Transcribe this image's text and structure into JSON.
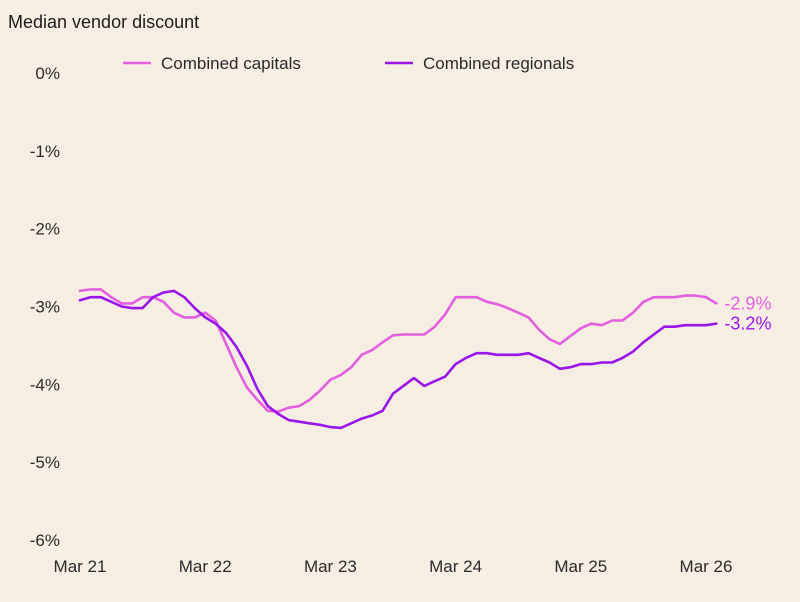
{
  "chart_data": {
    "type": "line",
    "title": "Median vendor discount",
    "xlabel": "",
    "ylabel": "",
    "ylim": [
      -6,
      0
    ],
    "yticks": [
      0,
      -1,
      -2,
      -3,
      -4,
      -5,
      -6
    ],
    "ytick_labels": [
      "0%",
      "-1%",
      "-2%",
      "-3%",
      "-4%",
      "-5%",
      "-6%"
    ],
    "xlim": [
      0,
      60
    ],
    "xticks": [
      0,
      12,
      24,
      36,
      48,
      60
    ],
    "xtick_labels": [
      "Mar 21",
      "Mar 22",
      "Mar 23",
      "Mar 24",
      "Mar 25",
      "Mar 26"
    ],
    "grid": false,
    "legend_position": "top",
    "colors": {
      "capitals": "#e35fe0",
      "regionals": "#9a16e8"
    },
    "series": [
      {
        "name": "Combined capitals",
        "end_label": "-2.9%",
        "x": [
          0,
          1,
          2,
          3,
          4,
          5,
          6,
          7,
          8,
          9,
          10,
          11,
          12,
          13,
          14,
          15,
          16,
          17,
          18,
          19,
          20,
          21,
          22,
          23,
          24,
          25,
          26,
          27,
          28,
          29,
          30,
          31,
          32,
          33,
          34,
          35,
          36,
          37,
          38,
          39,
          40,
          41,
          42,
          43,
          44,
          45,
          46,
          47,
          48,
          49,
          50,
          51,
          52,
          53,
          54,
          55,
          56,
          57,
          58,
          59,
          60,
          61
        ],
        "values": [
          -2.8,
          -2.78,
          -2.78,
          -2.88,
          -2.96,
          -2.96,
          -2.88,
          -2.88,
          -2.94,
          -3.08,
          -3.14,
          -3.14,
          -3.08,
          -3.18,
          -3.48,
          -3.78,
          -4.04,
          -4.2,
          -4.34,
          -4.35,
          -4.3,
          -4.28,
          -4.2,
          -4.08,
          -3.94,
          -3.88,
          -3.78,
          -3.62,
          -3.56,
          -3.46,
          -3.37,
          -3.36,
          -3.36,
          -3.36,
          -3.26,
          -3.1,
          -2.88,
          -2.88,
          -2.88,
          -2.94,
          -2.97,
          -3.02,
          -3.08,
          -3.14,
          -3.3,
          -3.42,
          -3.48,
          -3.38,
          -3.28,
          -3.22,
          -3.24,
          -3.18,
          -3.18,
          -3.08,
          -2.94,
          -2.88,
          -2.88,
          -2.88,
          -2.86,
          -2.86,
          -2.88,
          -2.96
        ]
      },
      {
        "name": "Combined regionals",
        "end_label": "-3.2%",
        "x": [
          0,
          1,
          2,
          3,
          4,
          5,
          6,
          7,
          8,
          9,
          10,
          11,
          12,
          13,
          14,
          15,
          16,
          17,
          18,
          19,
          20,
          21,
          22,
          23,
          24,
          25,
          26,
          27,
          28,
          29,
          30,
          31,
          32,
          33,
          34,
          35,
          36,
          37,
          38,
          39,
          40,
          41,
          42,
          43,
          44,
          45,
          46,
          47,
          48,
          49,
          50,
          51,
          52,
          53,
          54,
          55,
          56,
          57,
          58,
          59,
          60,
          61
        ],
        "values": [
          -2.92,
          -2.88,
          -2.88,
          -2.94,
          -3.0,
          -3.02,
          -3.02,
          -2.88,
          -2.82,
          -2.8,
          -2.88,
          -3.02,
          -3.14,
          -3.22,
          -3.34,
          -3.52,
          -3.76,
          -4.06,
          -4.28,
          -4.38,
          -4.46,
          -4.48,
          -4.5,
          -4.52,
          -4.55,
          -4.56,
          -4.5,
          -4.44,
          -4.4,
          -4.34,
          -4.12,
          -4.02,
          -3.92,
          -4.02,
          -3.96,
          -3.9,
          -3.74,
          -3.66,
          -3.6,
          -3.6,
          -3.62,
          -3.62,
          -3.62,
          -3.6,
          -3.66,
          -3.72,
          -3.8,
          -3.78,
          -3.74,
          -3.74,
          -3.72,
          -3.72,
          -3.66,
          -3.58,
          -3.46,
          -3.36,
          -3.26,
          -3.26,
          -3.24,
          -3.24,
          -3.24,
          -3.22
        ]
      }
    ]
  }
}
